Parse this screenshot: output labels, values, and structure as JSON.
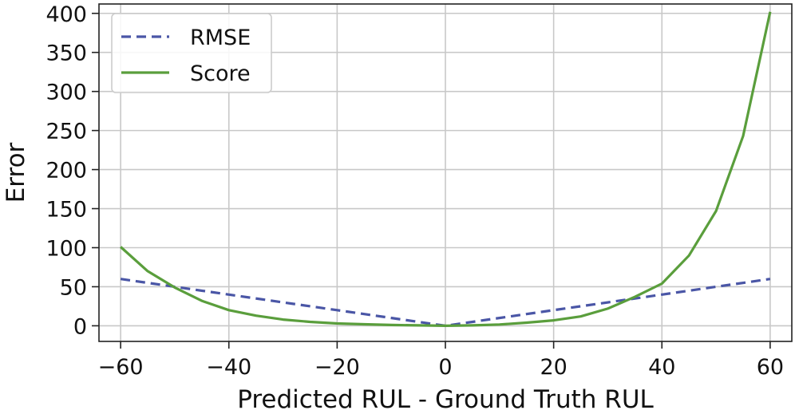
{
  "chart_data": {
    "type": "line",
    "title": "",
    "xlabel": "Predicted RUL - Ground Truth RUL",
    "ylabel": "Error",
    "xlim": [
      -64,
      64
    ],
    "ylim": [
      -20,
      412
    ],
    "xticks": [
      -60,
      -40,
      -20,
      0,
      20,
      40,
      60
    ],
    "xtick_labels": [
      "−60",
      "−40",
      "−20",
      "0",
      "20",
      "40",
      "60"
    ],
    "yticks": [
      0,
      50,
      100,
      150,
      200,
      250,
      300,
      350,
      400
    ],
    "ytick_labels": [
      "0",
      "50",
      "100",
      "150",
      "200",
      "250",
      "300",
      "350",
      "400"
    ],
    "grid": true,
    "legend": "top-left",
    "series": [
      {
        "name": "RMSE",
        "color": "#4a56a6",
        "style": "dashed",
        "x": [
          -60,
          -40,
          -20,
          0,
          20,
          40,
          60
        ],
        "y": [
          60,
          40,
          20,
          0,
          20,
          40,
          60
        ]
      },
      {
        "name": "Score",
        "color": "#5a9e3c",
        "style": "solid",
        "x": [
          -60,
          -55,
          -50,
          -45,
          -40,
          -35,
          -30,
          -25,
          -20,
          -15,
          -10,
          -5,
          0,
          5,
          10,
          15,
          20,
          25,
          30,
          35,
          40,
          45,
          50,
          55,
          60
        ],
        "y": [
          101,
          70,
          49,
          32,
          20,
          13,
          8,
          5,
          3,
          2,
          1,
          0.5,
          0,
          0.5,
          1.7,
          4,
          7,
          12,
          22,
          37,
          54,
          90,
          147,
          243,
          402
        ]
      }
    ]
  }
}
